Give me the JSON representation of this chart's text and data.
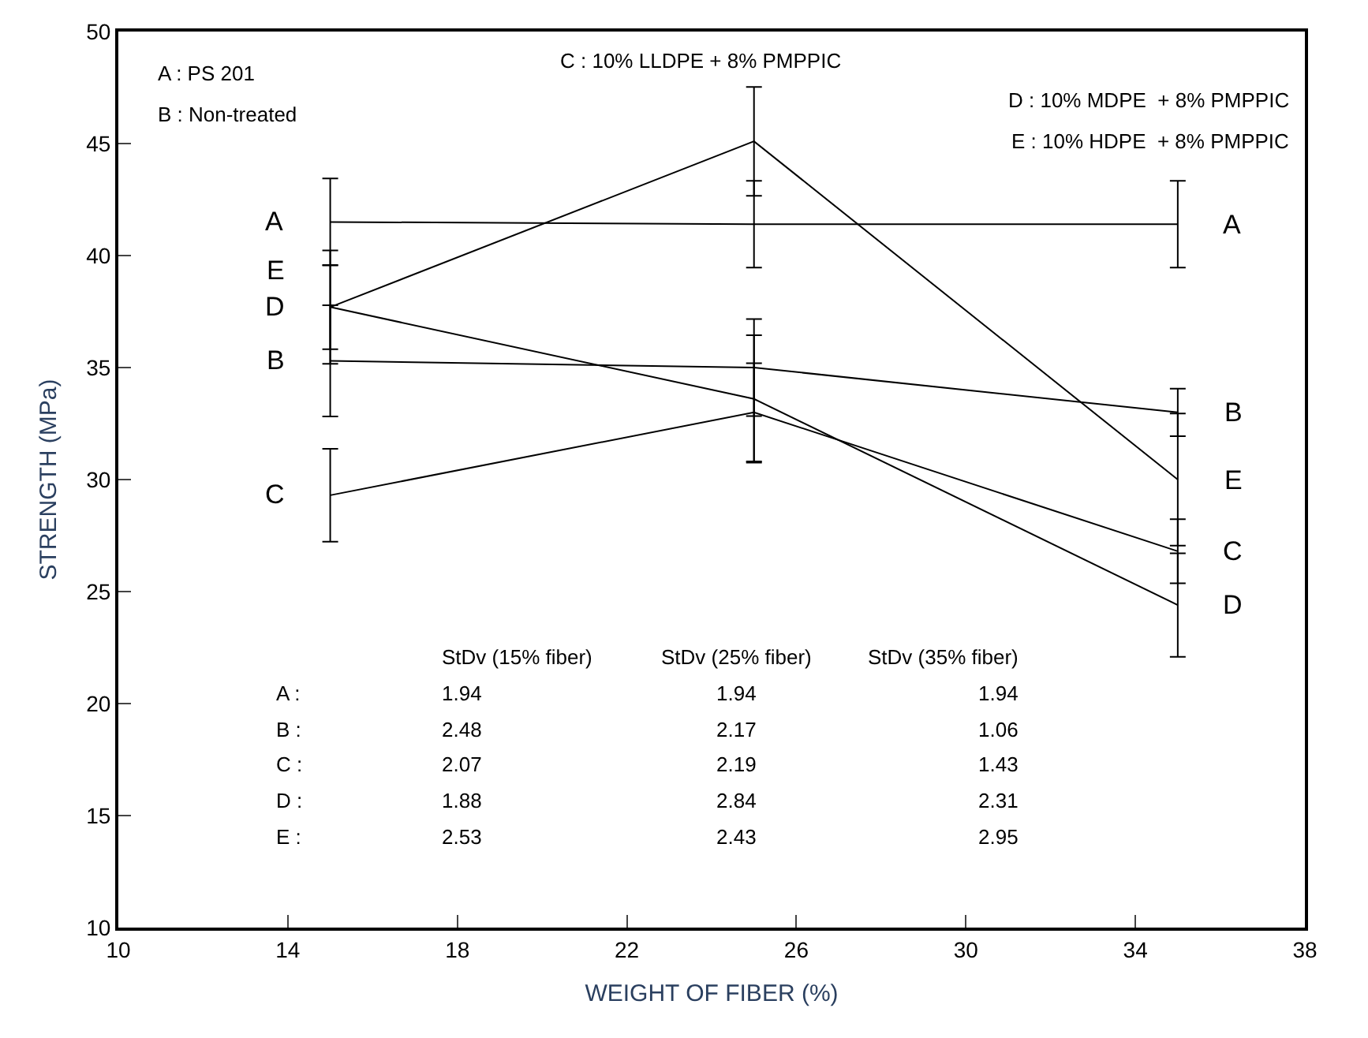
{
  "chart_data": {
    "type": "line",
    "xlabel": "WEIGHT OF FIBER (%)",
    "ylabel": "STRENGTH (MPa)",
    "x": [
      15,
      25,
      35
    ],
    "xlim": [
      10,
      38
    ],
    "xticks": [
      10,
      14,
      18,
      22,
      26,
      30,
      34,
      38
    ],
    "ylim": [
      10,
      50
    ],
    "yticks": [
      10,
      15,
      20,
      25,
      30,
      35,
      40,
      45,
      50
    ],
    "series": [
      {
        "name": "A",
        "color": "#000000",
        "values": [
          41.5,
          41.4,
          41.4
        ],
        "errors": [
          1.94,
          1.94,
          1.94
        ]
      },
      {
        "name": "B",
        "color": "#000000",
        "values": [
          35.3,
          35.0,
          33.0
        ],
        "errors": [
          2.48,
          2.17,
          1.06
        ]
      },
      {
        "name": "C",
        "color": "#000000",
        "values": [
          29.3,
          33.0,
          26.8
        ],
        "errors": [
          2.07,
          2.19,
          1.43
        ]
      },
      {
        "name": "D",
        "color": "#000000",
        "values": [
          37.7,
          33.6,
          24.4
        ],
        "errors": [
          1.88,
          2.84,
          2.31
        ]
      },
      {
        "name": "E",
        "color": "#000000",
        "values": [
          37.7,
          45.1,
          30.0
        ],
        "errors": [
          2.53,
          2.43,
          2.95
        ]
      }
    ],
    "annotations": [
      "A : PS 201",
      "B : Non-treated",
      "C : 10% LLDPE + 8% PMPPIC",
      "D : 10% MDPE  + 8% PMPPIC",
      "E : 10% HDPE  + 8% PMPPIC",
      "StDv (15% fiber)",
      "StDv (25% fiber)",
      "StDv (35% fiber)",
      "A :",
      "1.94",
      "1.94",
      "1.94",
      "B :",
      "2.48",
      "2.17",
      "1.06",
      "C :",
      "2.07",
      "2.19",
      "1.43",
      "D :",
      "1.88",
      "2.84",
      "2.31",
      "E :",
      "2.53",
      "2.43",
      "2.95"
    ],
    "legend": false,
    "marker": "none",
    "line_style": "solid"
  }
}
